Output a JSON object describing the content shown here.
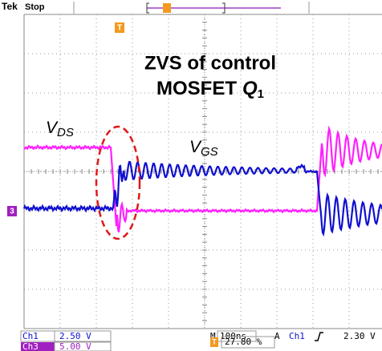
{
  "header": {
    "brand": "Tek",
    "status": "Stop"
  },
  "markers": {
    "trigger": "T",
    "channel3": "3"
  },
  "annotations": {
    "title_line1": "ZVS of control",
    "title_line2_prefix": "MOSFET",
    "title_line2_symbol": "Q",
    "title_line2_subscript": "1",
    "vds_symbol": "V",
    "vds_subscript": "DS",
    "vgs_symbol": "V",
    "vgs_subscript": "GS"
  },
  "status_bar": {
    "ch1_label": "Ch1",
    "ch1_scale": "2.50 V",
    "ch3_label": "Ch3",
    "ch3_scale": "5.00 V",
    "timebase_label": "M",
    "timebase": "100ns",
    "trigger_label": "A",
    "trigger_source": "Ch1",
    "trigger_level": "2.30 V",
    "position_icon": "T",
    "position": "27.80 %"
  }
}
